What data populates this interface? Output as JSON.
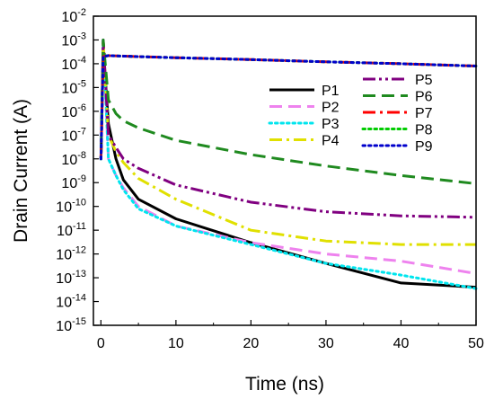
{
  "chart_data": {
    "type": "line",
    "title": "",
    "xlabel": "Time (ns)",
    "ylabel": "Drain Current (A)",
    "xlim": [
      -1,
      50
    ],
    "ylim_exponent": [
      -15,
      -2
    ],
    "y_scale": "log",
    "grid": false,
    "legend_placement": "upper-right",
    "x_ticks": [
      0,
      10,
      20,
      30,
      40,
      50
    ],
    "y_tick_base": "10",
    "y_tick_exponents": [
      -15,
      -14,
      -13,
      -12,
      -11,
      -10,
      -9,
      -8,
      -7,
      -6,
      -5,
      -4,
      -3,
      -2
    ],
    "series": [
      {
        "name": "P1",
        "color": "#000000",
        "dash": "solid",
        "x": [
          0,
          0.3,
          1,
          2,
          3,
          5,
          10,
          20,
          30,
          40,
          50
        ],
        "y": [
          1e-08,
          0.0005,
          3e-07,
          1e-08,
          1.3e-09,
          2e-10,
          3e-11,
          3e-12,
          4e-13,
          6e-14,
          4e-14
        ]
      },
      {
        "name": "P2",
        "color": "#ee82ee",
        "dash": "dash",
        "x": [
          0,
          0.3,
          1,
          2,
          3,
          5,
          10,
          20,
          30,
          40,
          50
        ],
        "y": [
          1e-08,
          0.001,
          1e-08,
          2e-09,
          6e-10,
          1e-10,
          1.5e-11,
          3e-12,
          1e-12,
          5e-13,
          1.5e-13
        ]
      },
      {
        "name": "P3",
        "color": "#00e5ee",
        "dash": "dot",
        "x": [
          0,
          0.3,
          1,
          2,
          3,
          5,
          10,
          20,
          30,
          40,
          50
        ],
        "y": [
          1e-08,
          0.001,
          1e-08,
          2e-09,
          5e-10,
          8e-11,
          1.5e-11,
          2.5e-12,
          4e-13,
          1.3e-13,
          3.5e-14
        ]
      },
      {
        "name": "P4",
        "color": "#e0e000",
        "dash": "dashdot",
        "x": [
          0,
          0.3,
          1,
          2,
          3,
          5,
          10,
          20,
          30,
          40,
          50
        ],
        "y": [
          1e-08,
          0.001,
          1e-07,
          2e-08,
          7e-09,
          1.5e-09,
          2e-10,
          1e-11,
          3.5e-12,
          2.5e-12,
          2.5e-12
        ]
      },
      {
        "name": "P5",
        "color": "#800080",
        "dash": "dashdotdot",
        "x": [
          0,
          0.3,
          1,
          2,
          3,
          5,
          10,
          20,
          30,
          40,
          50
        ],
        "y": [
          1e-08,
          0.001,
          1e-07,
          3e-08,
          1e-08,
          4e-09,
          8e-10,
          1.5e-10,
          6e-11,
          4e-11,
          3.5e-11
        ]
      },
      {
        "name": "P6",
        "color": "#1f8a1f",
        "dash": "dash",
        "x": [
          0,
          0.3,
          1,
          2,
          3,
          5,
          10,
          20,
          30,
          40,
          50
        ],
        "y": [
          1e-08,
          0.001,
          3e-06,
          8e-07,
          4e-07,
          2e-07,
          6e-08,
          1.5e-08,
          5e-09,
          2e-09,
          9e-10
        ]
      },
      {
        "name": "P7",
        "color": "#ff0000",
        "dash": "dashdot",
        "x": [
          0,
          0.3,
          1,
          5,
          10,
          20,
          30,
          40,
          50
        ],
        "y": [
          1e-08,
          0.0002,
          0.00022,
          0.0002,
          0.00018,
          0.00015,
          0.00012,
          0.0001,
          8e-05
        ]
      },
      {
        "name": "P8",
        "color": "#00cc00",
        "dash": "dot",
        "x": [
          0,
          0.3,
          1,
          5,
          10,
          20,
          30,
          40,
          50
        ],
        "y": [
          1e-08,
          0.0002,
          0.00022,
          0.0002,
          0.00018,
          0.00015,
          0.00012,
          0.0001,
          8e-05
        ]
      },
      {
        "name": "P9",
        "color": "#0000cc",
        "dash": "dot",
        "x": [
          0,
          0.3,
          1,
          5,
          10,
          20,
          30,
          40,
          50
        ],
        "y": [
          1e-08,
          0.0002,
          0.00022,
          0.0002,
          0.00018,
          0.00015,
          0.00012,
          0.0001,
          8e-05
        ]
      }
    ]
  }
}
